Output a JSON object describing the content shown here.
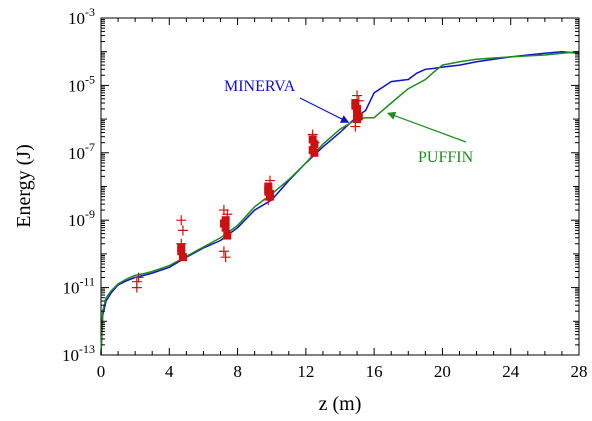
{
  "chart_data": {
    "type": "line",
    "xlabel": "z (m)",
    "ylabel": "Energy (J)",
    "xlim": [
      0,
      28
    ],
    "ylim_exponent": [
      -13,
      -3
    ],
    "y_scale": "log",
    "x_ticks": [
      "0",
      "4",
      "8",
      "12",
      "16",
      "20",
      "24",
      "28"
    ],
    "y_tick_exponents": [
      "-13",
      "-11",
      "-9",
      "-7",
      "-5",
      "-3"
    ],
    "y_tick_base": "10",
    "grid": false,
    "series": [
      {
        "name": "MINERVA",
        "color": "#1010c8",
        "x": [
          0.0,
          0.1,
          0.3,
          0.6,
          1.0,
          1.5,
          2.0,
          2.5,
          3.0,
          4.0,
          5.0,
          6.0,
          7.0,
          8.0,
          9.0,
          10.0,
          11.0,
          12.0,
          13.0,
          14.0,
          15.0,
          15.5,
          16.0,
          17.0,
          17.5,
          18.0,
          18.5,
          19.0,
          19.5,
          20.0,
          21.0,
          22.0,
          23.0,
          24.0,
          25.0,
          26.0,
          27.0,
          28.0
        ],
        "y": [
          1e-13,
          1.5e-12,
          4e-12,
          7e-12,
          1.2e-11,
          1.6e-11,
          2e-11,
          2.3e-11,
          2.7e-11,
          4e-11,
          8e-11,
          1.5e-10,
          2.5e-10,
          6e-10,
          2e-09,
          4e-09,
          1.5e-08,
          5e-08,
          1.5e-07,
          4e-07,
          1.2e-06,
          1.8e-06,
          6e-06,
          1.3e-05,
          1.4e-05,
          1.5e-05,
          2.3e-05,
          3e-05,
          3.2e-05,
          3.5e-05,
          4e-05,
          5e-05,
          6e-05,
          7e-05,
          8e-05,
          9e-05,
          0.0001,
          9e-05
        ]
      },
      {
        "name": "PUFFIN",
        "color": "#1e8c1e",
        "x": [
          0.0,
          0.1,
          0.3,
          0.6,
          1.0,
          1.5,
          2.0,
          2.5,
          3.0,
          4.0,
          5.0,
          6.0,
          7.0,
          8.0,
          9.0,
          10.0,
          11.0,
          12.0,
          13.0,
          14.0,
          15.0,
          15.5,
          16.0,
          17.0,
          18.0,
          19.0,
          19.5,
          20.0,
          21.0,
          22.0,
          23.0,
          24.0,
          25.0,
          26.0,
          27.0,
          28.0
        ],
        "y": [
          1e-13,
          2e-12,
          5e-12,
          8e-12,
          1.3e-11,
          1.8e-11,
          2.3e-11,
          2.6e-11,
          3e-11,
          4.5e-11,
          8.5e-11,
          1.6e-10,
          3e-10,
          7e-10,
          2.5e-09,
          6e-09,
          1.6e-08,
          5e-08,
          1.8e-07,
          5e-07,
          1e-06,
          1.1e-06,
          1.1e-06,
          3e-06,
          8e-06,
          1.5e-05,
          2.5e-05,
          4e-05,
          5e-05,
          6e-05,
          6.5e-05,
          7e-05,
          7.5e-05,
          8e-05,
          9e-05,
          0.0001
        ]
      },
      {
        "name": "",
        "type": "scatter",
        "marker": "square",
        "color": "#cc1111",
        "x": [
          4.7,
          4.7,
          4.8,
          7.2,
          7.3,
          7.3,
          7.4,
          9.8,
          9.8,
          9.9,
          9.9,
          9.8,
          12.4,
          12.5,
          12.4,
          12.5,
          14.9,
          15.0,
          15.0,
          15.1,
          14.9,
          15.0
        ],
        "y": [
          1.5e-10,
          1.2e-10,
          8e-11,
          8e-10,
          1e-09,
          6e-10,
          3.5e-10,
          1e-08,
          8e-09,
          6e-09,
          5e-09,
          7e-09,
          2.5e-07,
          1.8e-07,
          1.2e-07,
          1e-07,
          3e-06,
          2e-06,
          1.5e-06,
          1.2e-06,
          2.5e-06,
          1e-06
        ]
      },
      {
        "name": "",
        "type": "scatter",
        "marker": "plus",
        "color": "#cc1111",
        "x": [
          2.1,
          2.1,
          2.2,
          4.7,
          4.8,
          4.7,
          7.2,
          7.3,
          7.2,
          7.4,
          9.9,
          9.8,
          12.4,
          12.5,
          15.0,
          15.1,
          14.9
        ],
        "y": [
          1.5e-11,
          1e-11,
          2e-11,
          1e-09,
          5e-10,
          2e-10,
          1.2e-10,
          8e-11,
          2e-09,
          1.5e-09,
          1.5e-08,
          4e-09,
          3.5e-07,
          2e-07,
          5e-06,
          3.5e-06,
          6e-07
        ]
      }
    ],
    "annotations": [
      {
        "text": "MINERVA",
        "color": "#1010c8",
        "arrow_to": [
          14.5,
          8e-07
        ]
      },
      {
        "text": "PUFFIN",
        "color": "#1e8c1e",
        "arrow_to": [
          16.8,
          1.5e-06
        ]
      }
    ]
  }
}
